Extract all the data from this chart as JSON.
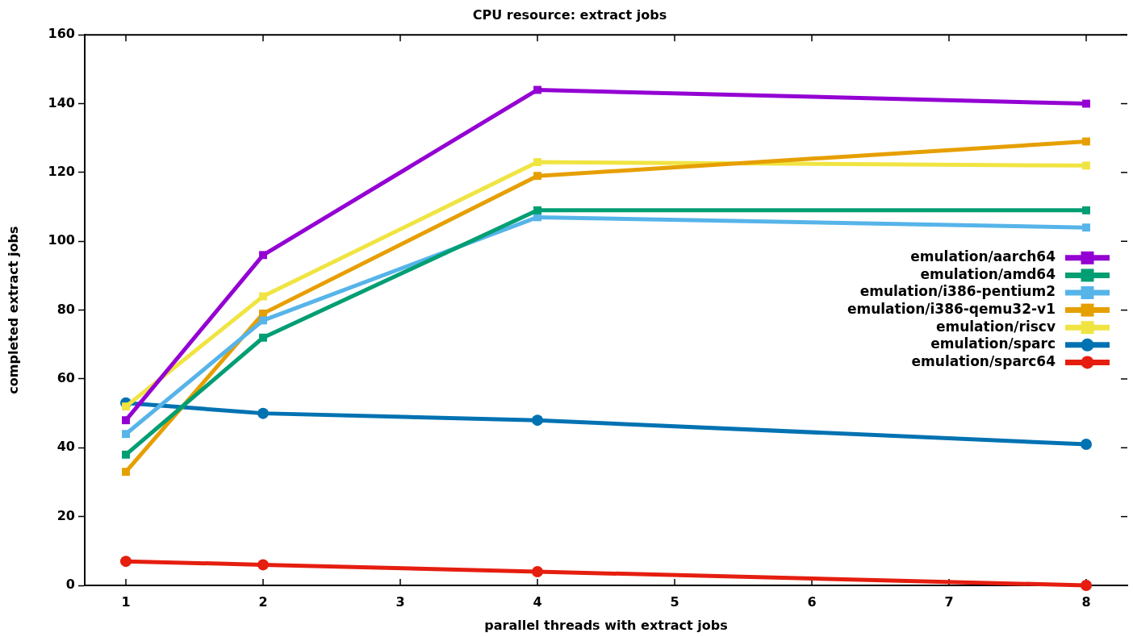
{
  "chart_data": {
    "type": "line",
    "title": "CPU resource: extract jobs",
    "xlabel": "parallel threads with extract jobs",
    "ylabel": "completed extract jobs",
    "x": [
      1,
      2,
      4,
      8
    ],
    "xlim": [
      0.7,
      8.3
    ],
    "xticks": [
      1,
      2,
      3,
      4,
      5,
      6,
      7,
      8
    ],
    "ylim": [
      0,
      160
    ],
    "yticks": [
      0,
      20,
      40,
      60,
      80,
      100,
      120,
      140,
      160
    ],
    "legend": "right",
    "line_style": "solid",
    "series": [
      {
        "name": "emulation/aarch64",
        "color": "#9400d3",
        "marker": "square",
        "values": [
          48,
          96,
          144,
          140
        ]
      },
      {
        "name": "emulation/amd64",
        "color": "#009e73",
        "marker": "square",
        "values": [
          38,
          72,
          109,
          109
        ]
      },
      {
        "name": "emulation/i386-pentium2",
        "color": "#56b4e9",
        "marker": "square",
        "values": [
          44,
          77,
          107,
          104
        ]
      },
      {
        "name": "emulation/i386-qemu32-v1",
        "color": "#e69f00",
        "marker": "square",
        "values": [
          33,
          79,
          119,
          129
        ]
      },
      {
        "name": "emulation/riscv",
        "color": "#f0e442",
        "marker": "square",
        "values": [
          52,
          84,
          123,
          122
        ]
      },
      {
        "name": "emulation/sparc",
        "color": "#0072b2",
        "marker": "circle",
        "values": [
          53,
          50,
          48,
          41
        ]
      },
      {
        "name": "emulation/sparc64",
        "color": "#e51e10",
        "marker": "circle",
        "values": [
          7,
          6,
          4,
          0
        ]
      }
    ]
  }
}
